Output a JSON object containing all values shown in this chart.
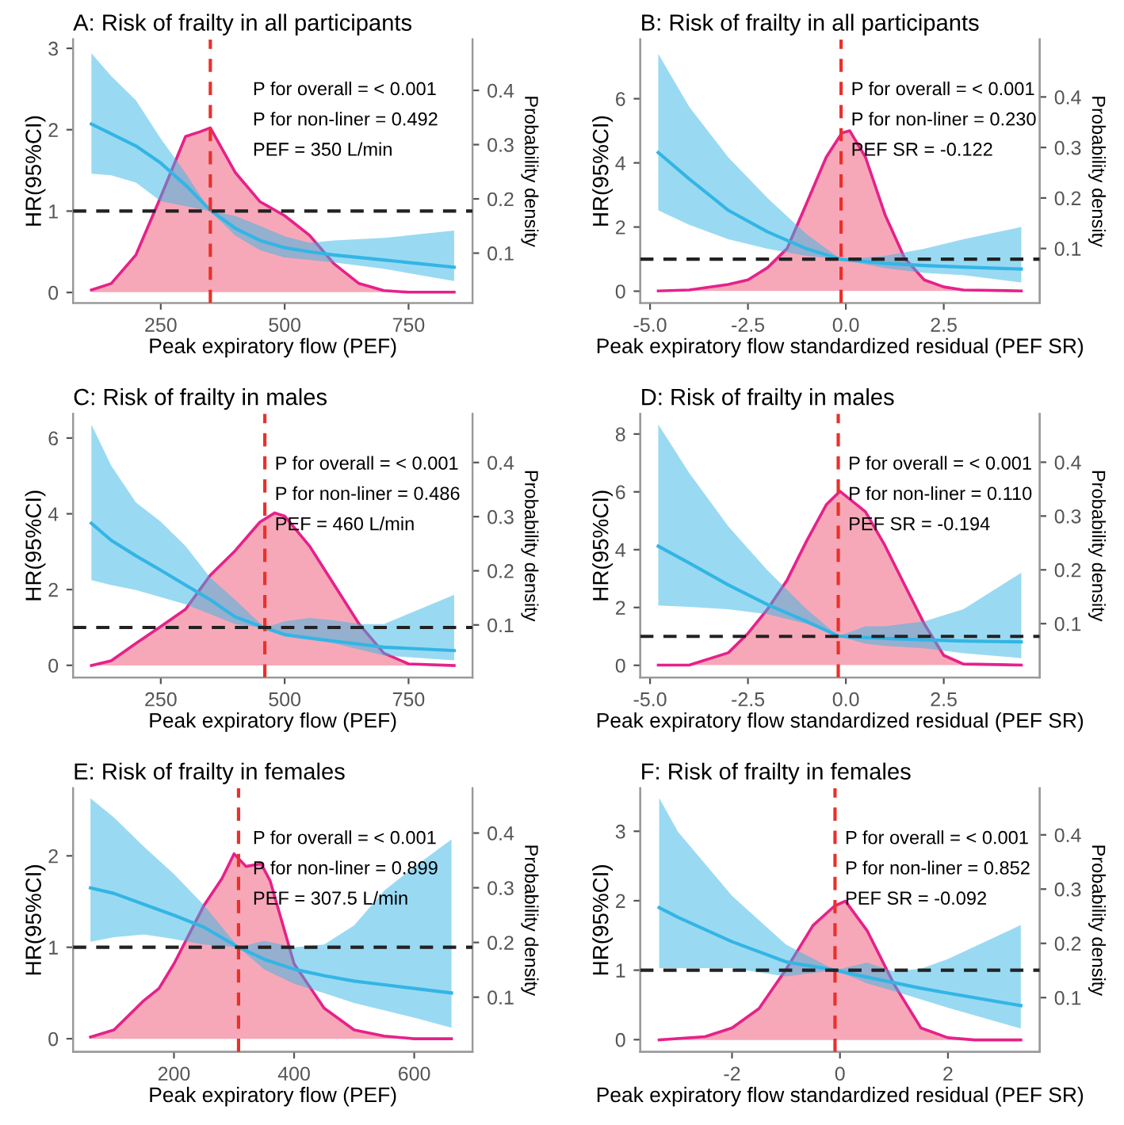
{
  "chart_data": [
    {
      "type": "line",
      "title": "A: Risk of frailty in all participants",
      "xlabel": "Peak expiratory flow (PEF)",
      "ylabel": "HR(95%CI)",
      "y2label": "Probability density",
      "xlim": [
        73,
        879
      ],
      "xticks": [
        250,
        500,
        750
      ],
      "ylim": [
        -0.13,
        3.11
      ],
      "yticks": [
        0,
        1,
        2,
        3
      ],
      "y2lim": [
        0.008,
        0.494
      ],
      "y2ticks": [
        0.1,
        0.2,
        0.3,
        0.4
      ],
      "series": [
        {
          "type": "area",
          "axis": "y2",
          "color": "#e6218a",
          "x": [
            110,
            150,
            200,
            250,
            300,
            330,
            350,
            400,
            450,
            500,
            550,
            600,
            650,
            700,
            750,
            842
          ],
          "values": [
            0.032,
            0.044,
            0.097,
            0.204,
            0.315,
            0.324,
            0.331,
            0.249,
            0.195,
            0.169,
            0.133,
            0.08,
            0.044,
            0.031,
            0.028,
            0.028
          ]
        },
        {
          "type": "line",
          "color": "#33b5e5",
          "x": [
            110,
            150,
            200,
            250,
            300,
            350,
            400,
            450,
            500,
            550,
            600,
            700,
            842
          ],
          "values": [
            2.07,
            1.95,
            1.8,
            1.59,
            1.32,
            1.01,
            0.79,
            0.64,
            0.55,
            0.5,
            0.46,
            0.4,
            0.31
          ],
          "lower": [
            1.46,
            1.44,
            1.35,
            1.12,
            1.06,
            1.0,
            0.7,
            0.52,
            0.43,
            0.4,
            0.37,
            0.29,
            0.14
          ],
          "upper": [
            2.94,
            2.66,
            2.36,
            1.89,
            1.47,
            1.0,
            0.94,
            0.82,
            0.69,
            0.61,
            0.64,
            0.67,
            0.76
          ]
        }
      ],
      "ref_lines": [
        {
          "axis": "x",
          "value": 350,
          "color": "#e8312b",
          "line_style": "dashed"
        },
        {
          "axis": "y",
          "value": 1,
          "color": "#222222",
          "line_style": "dashed"
        }
      ],
      "annotations": [
        "P for overall = < 0.001",
        "P for non-liner = 0.492",
        "PEF = 350 L/min"
      ]
    },
    {
      "type": "line",
      "title": "B: Risk of frailty in all participants",
      "xlabel": "Peak expiratory flow standardized residual (PEF SR)",
      "ylabel": "HR(95%CI)",
      "y2label": "Probability density",
      "xlim": [
        -5.25,
        4.95
      ],
      "xticks": [
        {
          "value": -5,
          "label": "-5.0"
        },
        {
          "value": -2.5,
          "label": "-2.5"
        },
        {
          "value": 0,
          "label": "0.0"
        },
        {
          "value": 2.5,
          "label": "2.5"
        }
      ],
      "ylim": [
        -0.37,
        7.85
      ],
      "yticks": [
        0,
        2,
        4,
        6
      ],
      "y2lim": [
        -0.008,
        0.514
      ],
      "y2ticks": [
        0.1,
        0.2,
        0.3,
        0.4
      ],
      "series": [
        {
          "type": "area",
          "axis": "y2",
          "color": "#e6218a",
          "x": [
            -4.79,
            -4,
            -3,
            -2.5,
            -2,
            -1.5,
            -1,
            -0.5,
            -0.1,
            0.1,
            0.5,
            1,
            1.5,
            2,
            2.5,
            3,
            4.48
          ],
          "values": [
            0.016,
            0.018,
            0.029,
            0.038,
            0.062,
            0.1,
            0.19,
            0.281,
            0.329,
            0.333,
            0.281,
            0.167,
            0.081,
            0.038,
            0.024,
            0.018,
            0.016
          ]
        },
        {
          "type": "line",
          "color": "#33b5e5",
          "x": [
            -4.79,
            -4,
            -3,
            -2,
            -1,
            -0.12,
            1,
            2,
            3,
            4.48
          ],
          "values": [
            4.32,
            3.5,
            2.52,
            1.85,
            1.32,
            0.99,
            0.87,
            0.8,
            0.75,
            0.69
          ],
          "lower": [
            2.52,
            2.07,
            1.62,
            1.32,
            1.1,
            0.99,
            0.72,
            0.57,
            0.5,
            0.27
          ],
          "upper": [
            7.4,
            5.75,
            4.17,
            2.9,
            1.77,
            0.99,
            1.1,
            1.32,
            1.62,
            2.0
          ]
        }
      ],
      "ref_lines": [
        {
          "axis": "x",
          "value": -0.122,
          "color": "#e8312b",
          "line_style": "dashed"
        },
        {
          "axis": "y",
          "value": 1,
          "color": "#222222",
          "line_style": "dashed"
        }
      ],
      "annotations": [
        "P for overall = < 0.001",
        "P for non-liner = 0.230",
        "PEF SR = -0.122"
      ]
    },
    {
      "type": "line",
      "title": "C: Risk of frailty in males",
      "xlabel": "Peak expiratory flow (PEF)",
      "ylabel": "HR(95%CI)",
      "y2label": "Probability density",
      "xlim": [
        73,
        879
      ],
      "xticks": [
        250,
        500,
        750
      ],
      "ylim": [
        -0.32,
        6.64
      ],
      "yticks": [
        0,
        2,
        4,
        6
      ],
      "y2lim": [
        0.003,
        0.49
      ],
      "y2ticks": [
        0.1,
        0.2,
        0.3,
        0.4
      ],
      "series": [
        {
          "type": "area",
          "axis": "y2",
          "color": "#e6218a",
          "x": [
            110,
            150,
            200,
            250,
            300,
            350,
            400,
            450,
            480,
            500,
            550,
            600,
            650,
            700,
            750,
            842
          ],
          "values": [
            0.025,
            0.034,
            0.066,
            0.097,
            0.129,
            0.192,
            0.237,
            0.29,
            0.307,
            0.301,
            0.246,
            0.174,
            0.102,
            0.048,
            0.028,
            0.025
          ]
        },
        {
          "type": "line",
          "color": "#33b5e5",
          "x": [
            110,
            150,
            200,
            250,
            300,
            350,
            400,
            460,
            500,
            550,
            600,
            650,
            700,
            842
          ],
          "values": [
            3.75,
            3.3,
            2.89,
            2.51,
            2.12,
            1.73,
            1.28,
            0.99,
            0.81,
            0.72,
            0.64,
            0.56,
            0.48,
            0.39
          ],
          "lower": [
            2.25,
            2.12,
            1.99,
            1.8,
            1.61,
            1.35,
            1.09,
            0.99,
            0.77,
            0.68,
            0.58,
            0.42,
            0.26,
            0.13
          ],
          "upper": [
            6.36,
            5.27,
            4.3,
            3.79,
            3.15,
            2.31,
            1.73,
            0.99,
            1.16,
            1.25,
            1.19,
            1.09,
            1.09,
            1.86
          ]
        }
      ],
      "ref_lines": [
        {
          "axis": "x",
          "value": 460,
          "color": "#e8312b",
          "line_style": "dashed"
        },
        {
          "axis": "y",
          "value": 1,
          "color": "#222222",
          "line_style": "dashed"
        }
      ],
      "annotations": [
        "P for overall = < 0.001",
        "P for non-liner = 0.486",
        "PEF = 460 L/min"
      ]
    },
    {
      "type": "line",
      "title": "D: Risk of frailty in males",
      "xlabel": "Peak expiratory flow standardized residual (PEF SR)",
      "ylabel": "HR(95%CI)",
      "y2label": "Probability density",
      "xlim": [
        -5.25,
        4.95
      ],
      "xticks": [
        {
          "value": -5,
          "label": "-5.0"
        },
        {
          "value": -2.5,
          "label": "-2.5"
        },
        {
          "value": 0,
          "label": "0.0"
        },
        {
          "value": 2.5,
          "label": "2.5"
        }
      ],
      "ylim": [
        -0.42,
        8.7
      ],
      "yticks": [
        0,
        2,
        4,
        6,
        8
      ],
      "y2lim": [
        0.0,
        0.49
      ],
      "y2ticks": [
        0.1,
        0.2,
        0.3,
        0.4
      ],
      "series": [
        {
          "type": "area",
          "axis": "y2",
          "color": "#e6218a",
          "x": [
            -4.79,
            -4,
            -3,
            -2.5,
            -2,
            -1.5,
            -1,
            -0.5,
            -0.15,
            0.5,
            1,
            1.5,
            2,
            2.5,
            3,
            4.48
          ],
          "values": [
            0.023,
            0.023,
            0.046,
            0.082,
            0.127,
            0.181,
            0.254,
            0.321,
            0.346,
            0.308,
            0.245,
            0.172,
            0.1,
            0.041,
            0.025,
            0.023
          ]
        },
        {
          "type": "line",
          "color": "#33b5e5",
          "x": [
            -4.79,
            -4,
            -3,
            -2,
            -1,
            -0.19,
            0.5,
            1,
            2,
            3,
            4.48
          ],
          "values": [
            4.12,
            3.54,
            2.78,
            2.1,
            1.52,
            1.01,
            0.96,
            0.93,
            0.88,
            0.84,
            0.81
          ],
          "lower": [
            2.07,
            2.02,
            1.94,
            1.77,
            1.43,
            1.01,
            0.75,
            0.67,
            0.59,
            0.42,
            0.25
          ],
          "upper": [
            8.33,
            6.65,
            4.8,
            3.28,
            1.94,
            1.01,
            1.35,
            1.35,
            1.52,
            1.94,
            3.2
          ]
        }
      ],
      "ref_lines": [
        {
          "axis": "x",
          "value": -0.194,
          "color": "#e8312b",
          "line_style": "dashed"
        },
        {
          "axis": "y",
          "value": 1,
          "color": "#222222",
          "line_style": "dashed"
        }
      ],
      "annotations": [
        "P for overall = < 0.001",
        "P for non-liner = 0.110",
        "PEF SR = -0.194"
      ]
    },
    {
      "type": "line",
      "title": "E: Risk of frailty in females",
      "xlabel": "Peak expiratory flow (PEF)",
      "ylabel": "HR(95%CI)",
      "y2label": "Probability density",
      "xlim": [
        32,
        697
      ],
      "xticks": [
        200,
        400,
        600
      ],
      "ylim": [
        -0.144,
        2.74
      ],
      "yticks": [
        0,
        1,
        2
      ],
      "y2lim": [
        0.0,
        0.482
      ],
      "y2ticks": [
        0.1,
        0.2,
        0.3,
        0.4
      ],
      "series": [
        {
          "type": "area",
          "axis": "y2",
          "color": "#e6218a",
          "x": [
            61,
            100,
            150,
            175,
            200,
            250,
            280,
            300,
            320,
            345,
            360,
            400,
            450,
            500,
            550,
            600,
            662
          ],
          "values": [
            0.027,
            0.04,
            0.094,
            0.116,
            0.161,
            0.268,
            0.317,
            0.362,
            0.339,
            0.344,
            0.313,
            0.161,
            0.08,
            0.04,
            0.029,
            0.024,
            0.024
          ]
        },
        {
          "type": "line",
          "color": "#33b5e5",
          "x": [
            61,
            100,
            150,
            200,
            250,
            307.5,
            350,
            400,
            450,
            500,
            550,
            600,
            662
          ],
          "values": [
            1.65,
            1.59,
            1.47,
            1.35,
            1.22,
            1.0,
            0.87,
            0.76,
            0.69,
            0.63,
            0.59,
            0.55,
            0.5
          ],
          "lower": [
            1.06,
            1.11,
            1.14,
            1.09,
            1.03,
            1.0,
            0.76,
            0.6,
            0.5,
            0.39,
            0.31,
            0.23,
            0.12
          ],
          "upper": [
            2.63,
            2.42,
            2.1,
            1.8,
            1.46,
            1.0,
            1.07,
            1.0,
            1.03,
            1.24,
            1.62,
            1.88,
            2.18
          ]
        }
      ],
      "ref_lines": [
        {
          "axis": "x",
          "value": 307.5,
          "color": "#e8312b",
          "line_style": "dashed"
        },
        {
          "axis": "y",
          "value": 1,
          "color": "#222222",
          "line_style": "dashed"
        }
      ],
      "annotations": [
        "P for overall = < 0.001",
        "P for non-liner = 0.899",
        "PEF = 307.5 L/min"
      ]
    },
    {
      "type": "line",
      "title": "F: Risk of frailty in females",
      "xlabel": "Peak expiratory flow standardized residual (PEF SR)",
      "ylabel": "HR(95%CI)",
      "y2label": "Probability density",
      "xlim": [
        -3.7,
        3.7
      ],
      "xticks": [
        -2,
        0,
        2
      ],
      "ylim": [
        -0.176,
        3.62
      ],
      "yticks": [
        0,
        1,
        2,
        3
      ],
      "y2lim": [
        0.0,
        0.486
      ],
      "y2ticks": [
        0.1,
        0.2,
        0.3,
        0.4
      ],
      "series": [
        {
          "type": "area",
          "axis": "y2",
          "color": "#e6218a",
          "x": [
            -3.35,
            -2.5,
            -2,
            -1.5,
            -1,
            -0.5,
            -0.1,
            0.1,
            0.5,
            1,
            1.5,
            2,
            2.5,
            3.35
          ],
          "values": [
            0.022,
            0.028,
            0.044,
            0.08,
            0.152,
            0.233,
            0.269,
            0.278,
            0.224,
            0.125,
            0.044,
            0.026,
            0.022,
            0.022
          ]
        },
        {
          "type": "line",
          "color": "#33b5e5",
          "x": [
            -3.35,
            -3,
            -2,
            -1,
            -0.09,
            0.5,
            1,
            1.5,
            2,
            3.35
          ],
          "values": [
            1.9,
            1.76,
            1.41,
            1.12,
            1.0,
            0.9,
            0.82,
            0.74,
            0.67,
            0.49
          ],
          "lower": [
            1.03,
            1.03,
            1.03,
            0.91,
            1.0,
            0.81,
            0.7,
            0.58,
            0.46,
            0.16
          ],
          "upper": [
            3.48,
            2.99,
            2.07,
            1.37,
            1.0,
            1.11,
            0.98,
            1.02,
            1.16,
            1.65
          ]
        }
      ],
      "ref_lines": [
        {
          "axis": "x",
          "value": -0.092,
          "color": "#e8312b",
          "line_style": "dashed"
        },
        {
          "axis": "y",
          "value": 1,
          "color": "#222222",
          "line_style": "dashed"
        }
      ],
      "annotations": [
        "P for overall = < 0.001",
        "P for non-liner = 0.852",
        "PEF SR = -0.092"
      ]
    }
  ]
}
